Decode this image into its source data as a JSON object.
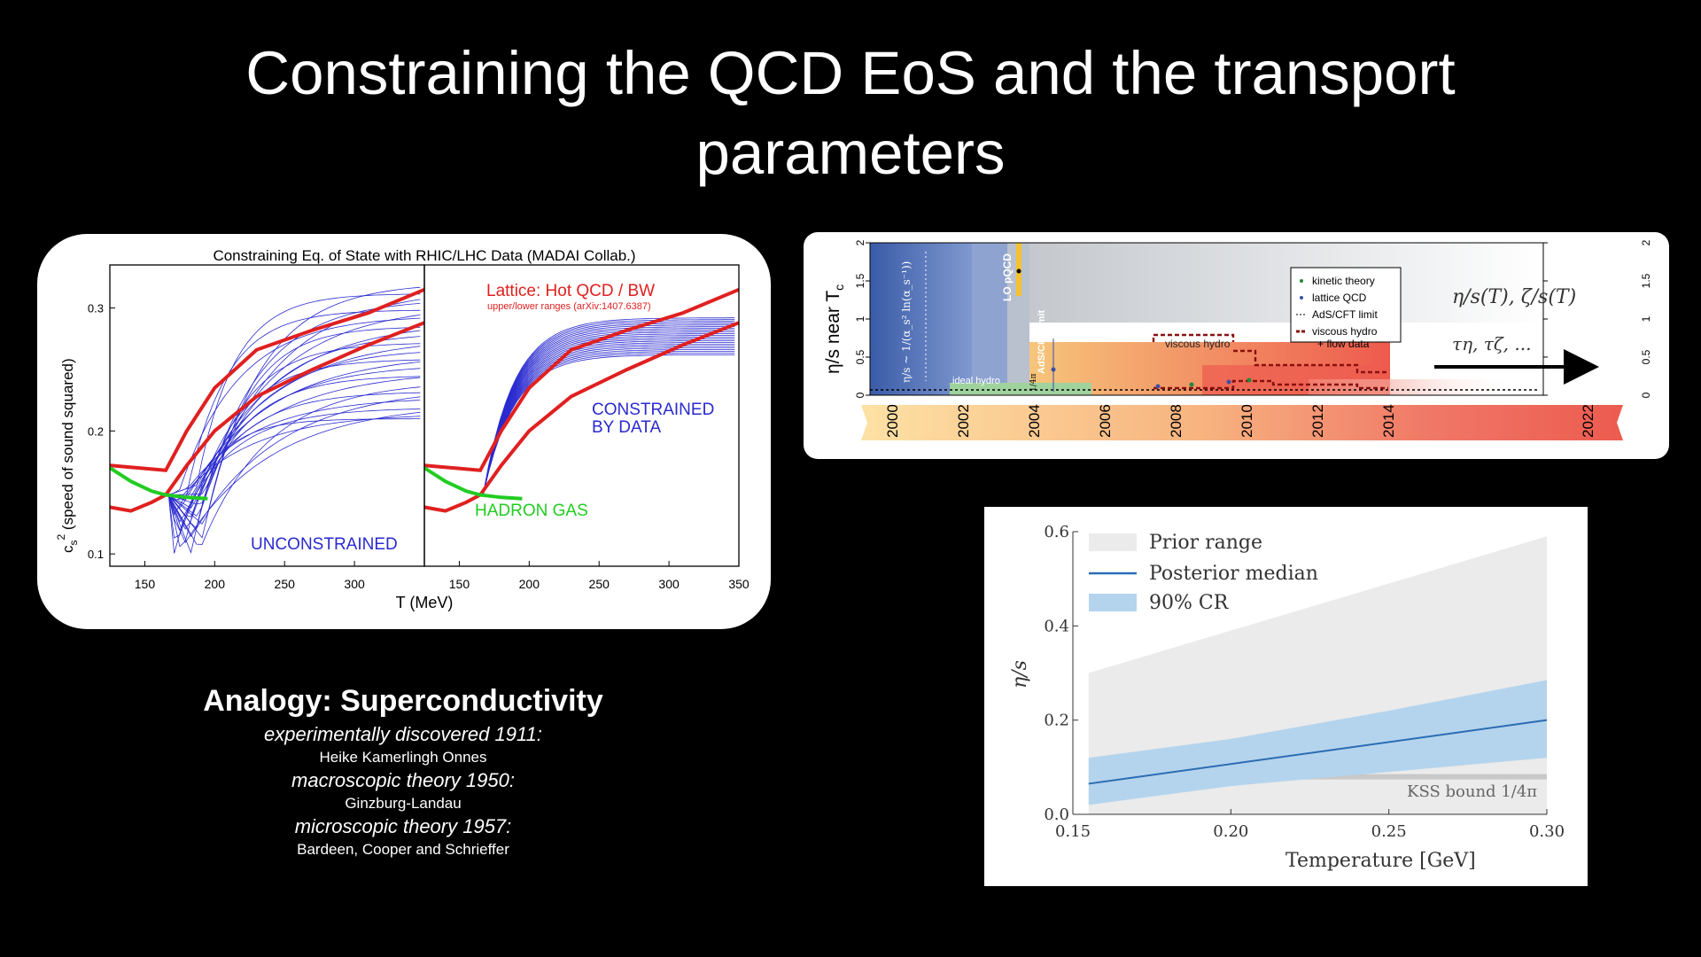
{
  "slide": {
    "title_line1": "Constraining the QCD EoS and the transport",
    "title_line2": "parameters"
  },
  "analogy": {
    "heading": "Analogy: Superconductivity",
    "items": [
      {
        "label": "experimentally discovered 1911:",
        "name": "Heike Kamerlingh Onnes"
      },
      {
        "label": "macroscopic theory 1950:",
        "name": "Ginzburg-Landau"
      },
      {
        "label": "microscopic theory 1957:",
        "name": "Bardeen, Cooper and Schrieffer"
      }
    ]
  },
  "colors": {
    "red": "#e02020",
    "blue": "#2a2ad0",
    "green": "#22cc22",
    "background": "#000000"
  },
  "chart_data": [
    {
      "type": "line",
      "title": "Constraining Eq. of State with RHIC/LHC Data (MADAI Collab.)",
      "xlabel": "T (MeV)",
      "ylabel_main": "c",
      "ylabel_sub": "s",
      "ylabel_sup": "2",
      "ylabel_rest": " (speed of sound squared)",
      "yticks": [
        "0.1",
        "0.2",
        "0.3"
      ],
      "xticks_left": [
        "150",
        "200",
        "250",
        "300"
      ],
      "xticks_right": [
        "150",
        "200",
        "250",
        "300",
        "350"
      ],
      "xlim": [
        125,
        350
      ],
      "ylim": [
        0.09,
        0.335
      ],
      "annotations": {
        "lattice": "Lattice: Hot QCD / BW",
        "lattice_sub": "upper/lower ranges (arXiv:1407.6387)",
        "unconstrained": "UNCONSTRAINED",
        "constrained_1": "CONSTRAINED",
        "constrained_2": "BY DATA",
        "hadron_gas": "HADRON GAS"
      },
      "lattice_upper": {
        "x": [
          125,
          165,
          180,
          200,
          230,
          270,
          310,
          350
        ],
        "y": [
          0.172,
          0.168,
          0.2,
          0.235,
          0.266,
          0.282,
          0.296,
          0.315
        ]
      },
      "lattice_lower": {
        "x": [
          125,
          140,
          155,
          165,
          180,
          200,
          230,
          270,
          310,
          350
        ],
        "y": [
          0.138,
          0.135,
          0.142,
          0.148,
          0.172,
          0.2,
          0.228,
          0.25,
          0.27,
          0.288
        ]
      },
      "hadron_gas": {
        "x": [
          125,
          140,
          155,
          165,
          180,
          195
        ],
        "y": [
          0.17,
          0.159,
          0.151,
          0.148,
          0.146,
          0.145
        ]
      }
    },
    {
      "type": "timeline",
      "ylabel": "η/s  near  T",
      "ylabel_sub": "c",
      "yticks": [
        "0",
        "0.5",
        "1",
        "1.5",
        "2"
      ],
      "ylim": [
        0,
        2
      ],
      "years": [
        "2000",
        "2002",
        "2004",
        "2006",
        "2008",
        "2010",
        "2012",
        "2014",
        "2022"
      ],
      "labels": {
        "lo_pqcd": "LO pQCD",
        "ads_cft": "AdS/CFT limit",
        "ideal_hydro": "ideal hydro",
        "viscous_hydro": "viscous hydro",
        "pqcd_formula": "η/s ~ 1/(α_s² ln(α_s⁻¹))",
        "kss": "1/4π",
        "future_1": "η/s(T), ζ/s(T)",
        "future_2": "τη, τζ, ..."
      },
      "legend": [
        "kinetic theory",
        "lattice QCD",
        "AdS/CFT limit",
        "viscous hydro",
        "+ flow data"
      ]
    },
    {
      "type": "area",
      "xlabel": "Temperature [GeV]",
      "ylabel": "η/s",
      "xticks": [
        "0.15",
        "0.20",
        "0.25",
        "0.30"
      ],
      "yticks": [
        "0.0",
        "0.2",
        "0.4",
        "0.6"
      ],
      "xlim": [
        0.15,
        0.3
      ],
      "ylim": [
        0.0,
        0.6
      ],
      "legend": [
        "Prior range",
        "Posterior median",
        "90% CR"
      ],
      "kss_label": "KSS bound 1/4π",
      "kss_value": 0.0796,
      "prior_range": {
        "x": [
          0.155,
          0.3
        ],
        "lower": [
          0.0,
          0.0
        ],
        "upper": [
          0.3,
          0.59
        ]
      },
      "cr90": {
        "x": [
          0.155,
          0.2,
          0.25,
          0.3
        ],
        "lower": [
          0.02,
          0.06,
          0.09,
          0.12
        ],
        "upper": [
          0.12,
          0.16,
          0.22,
          0.285
        ]
      },
      "median": {
        "x": [
          0.155,
          0.3
        ],
        "y": [
          0.065,
          0.2
        ]
      }
    }
  ]
}
